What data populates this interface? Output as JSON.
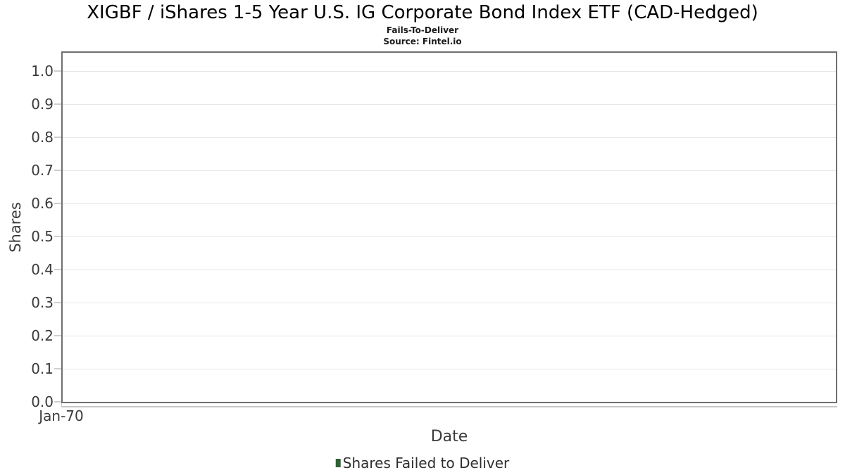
{
  "header": {
    "title": "XIGBF / iShares 1-5 Year U.S. IG Corporate Bond Index ETF (CAD-Hedged)",
    "subtitle": "Fails-To-Deliver",
    "source": "Source: Fintel.io"
  },
  "chart_data": {
    "type": "bar",
    "title": "XIGBF / iShares 1-5 Year U.S. IG Corporate Bond Index ETF (CAD-Hedged)",
    "subtitle": "Fails-To-Deliver",
    "source": "Source: Fintel.io",
    "xlabel": "Date",
    "ylabel": "Shares",
    "ylim": [
      0.0,
      1.06
    ],
    "grid": "horizontal",
    "y_tick_labels": [
      "0.0",
      "0.1",
      "0.2",
      "0.3",
      "0.4",
      "0.5",
      "0.6",
      "0.7",
      "0.8",
      "0.9",
      "1.0"
    ],
    "y_tick_values": [
      0.0,
      0.1,
      0.2,
      0.3,
      0.4,
      0.5,
      0.6,
      0.7,
      0.8,
      0.9,
      1.0
    ],
    "x_tick_labels": [
      "Jan-70"
    ],
    "legend": {
      "position": "bottom-center",
      "entries": [
        {
          "label": "Shares Failed to Deliver",
          "color": "#2d6234"
        }
      ]
    },
    "series": [
      {
        "name": "Shares Failed to Deliver",
        "x": [],
        "values": []
      }
    ]
  },
  "colors": {
    "plot_border": "#6f6f6f",
    "gridline": "#e7e7e7",
    "tick_mark": "#cfcfcf",
    "axis_strip": "#c8c8c8",
    "text": "#3a3a3a",
    "legend_marker": "#2d6234"
  }
}
